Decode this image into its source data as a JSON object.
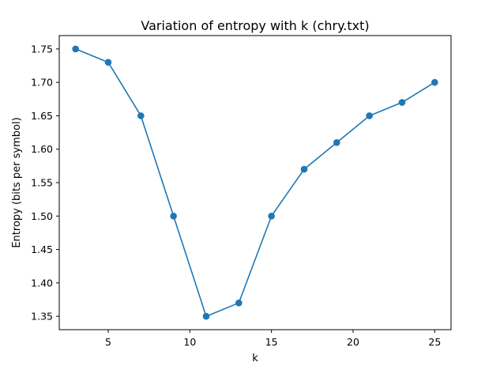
{
  "chart_data": {
    "type": "line",
    "title": "Variation of entropy with k (chry.txt)",
    "xlabel": "k",
    "ylabel": "Entropy (bits per symbol)",
    "xlim": [
      2.0,
      26.0
    ],
    "ylim": [
      1.33,
      1.77
    ],
    "xticks": [
      5,
      10,
      15,
      20,
      25
    ],
    "yticks": [
      1.35,
      1.4,
      1.45,
      1.5,
      1.55,
      1.6,
      1.65,
      1.7,
      1.75
    ],
    "grid": false,
    "marker": "circle",
    "color": "#1f77b4",
    "series": [
      {
        "x": [
          3,
          5,
          7,
          9,
          11,
          13,
          15,
          17,
          19,
          21,
          23,
          25
        ],
        "y": [
          1.75,
          1.73,
          1.65,
          1.5,
          1.35,
          1.37,
          1.5,
          1.57,
          1.61,
          1.65,
          1.67,
          1.7
        ]
      }
    ]
  }
}
